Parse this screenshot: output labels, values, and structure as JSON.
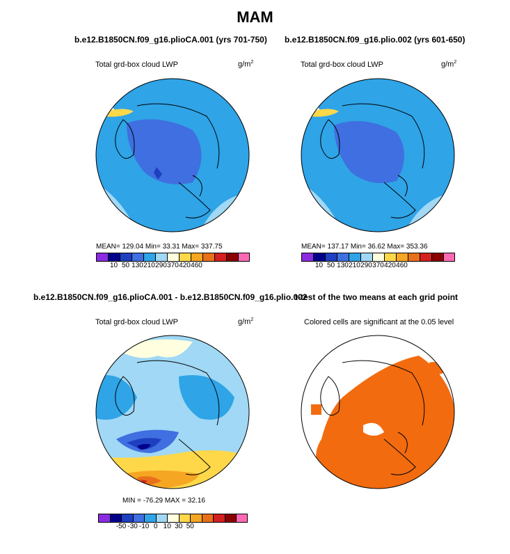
{
  "title": "MAM",
  "panels": {
    "p1": {
      "title": "b.e12.B1850CN.f09_g16.plioCA.001 (yrs 701-750)",
      "subtitle": "Total grd-box cloud LWP",
      "units": "g/m",
      "units_exp": "2",
      "stats": "MEAN= 129.04  Min=  33.31  Max= 337.75"
    },
    "p2": {
      "title": "b.e12.B1850CN.f09_g16.plio.002 (yrs 601-650)",
      "subtitle": "Total grd-box cloud LWP",
      "units": "g/m",
      "units_exp": "2",
      "stats": "MEAN= 137.17  Min=  36.62  Max= 353.36"
    },
    "p3": {
      "title": "b.e12.B1850CN.f09_g16.plioCA.001 - b.e12.B1850CN.f09_g16.plio.002",
      "subtitle": "Total grd-box cloud LWP",
      "units": "g/m",
      "units_exp": "2",
      "stats": "MIN = -76.29  MAX =  32.16"
    },
    "p4": {
      "title": "t-test of the two means at each grid point",
      "subtitle": "Colored cells are significant at the 0.05 level"
    }
  },
  "colorbar_levels": {
    "colors": [
      "#8a2be2",
      "#00008b",
      "#1e3fbf",
      "#3f6fe0",
      "#2fa4e7",
      "#a0d8f5",
      "#ffffe0",
      "#ffd84a",
      "#f5a623",
      "#e8701a",
      "#d42020",
      "#8b0000",
      "#ff69b4"
    ],
    "labels": [
      "10",
      "50",
      "130",
      "210",
      "290",
      "370",
      "420",
      "460"
    ]
  },
  "colorbar_diff": {
    "colors": [
      "#8a2be2",
      "#00008b",
      "#1e3fbf",
      "#3f6fe0",
      "#2fa4e7",
      "#a0d8f5",
      "#ffffe0",
      "#ffd84a",
      "#f5a623",
      "#e8701a",
      "#d42020",
      "#8b0000",
      "#ff69b4"
    ],
    "labels": [
      "-50",
      "-30",
      "-10",
      "0",
      "10",
      "30",
      "50"
    ]
  },
  "sig_color": "#f26b0f"
}
